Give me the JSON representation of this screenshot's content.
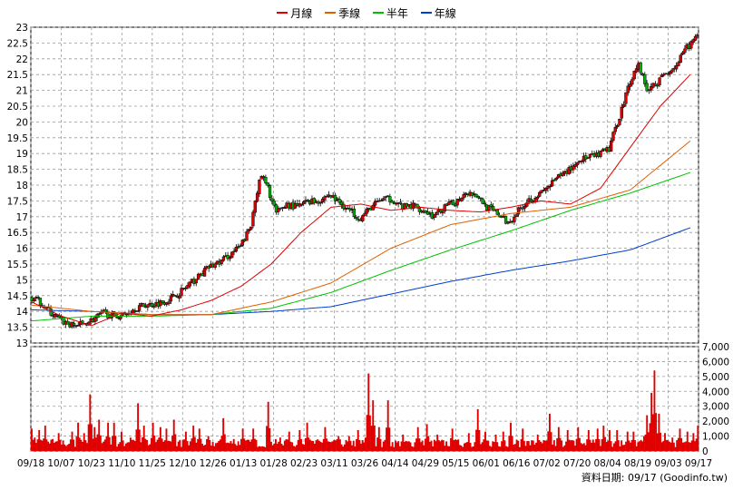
{
  "chart_data": {
    "type": "candlestick",
    "legend": [
      {
        "name": "月線",
        "color": "#e00000"
      },
      {
        "name": "季線",
        "color": "#e06000"
      },
      {
        "name": "半年",
        "color": "#00c000"
      },
      {
        "name": "年線",
        "color": "#0040d0"
      }
    ],
    "price_axis": {
      "ylim": [
        13,
        23
      ],
      "ticks": [
        "13",
        "13.5",
        "14",
        "14.5",
        "15",
        "15.5",
        "16",
        "16.5",
        "17",
        "17.5",
        "18",
        "18.5",
        "19",
        "19.5",
        "20",
        "20.5",
        "21",
        "21.5",
        "22",
        "22.5",
        "23"
      ],
      "grid": true
    },
    "volume_axis": {
      "ylim": [
        0,
        7000
      ],
      "ticks": [
        "0",
        "1,000",
        "2,000",
        "3,000",
        "4,000",
        "5,000",
        "6,000",
        "7,000"
      ],
      "grid": true
    },
    "x_ticks": [
      "09/18",
      "10/07",
      "10/23",
      "11/10",
      "11/25",
      "12/10",
      "12/26",
      "01/13",
      "01/28",
      "02/23",
      "03/11",
      "03/26",
      "04/14",
      "04/29",
      "05/15",
      "06/01",
      "06/16",
      "07/02",
      "07/20",
      "08/04",
      "08/19",
      "09/03",
      "09/17"
    ],
    "price_anchors": [
      [
        0,
        14.45
      ],
      [
        5,
        14.3
      ],
      [
        10,
        13.95
      ],
      [
        15,
        13.7
      ],
      [
        20,
        13.55
      ],
      [
        25,
        13.6
      ],
      [
        30,
        13.75
      ],
      [
        35,
        13.95
      ],
      [
        40,
        13.85
      ],
      [
        45,
        13.9
      ],
      [
        50,
        14.1
      ],
      [
        55,
        14.2
      ],
      [
        60,
        14.25
      ],
      [
        65,
        14.35
      ],
      [
        70,
        14.55
      ],
      [
        75,
        14.8
      ],
      [
        80,
        15.1
      ],
      [
        85,
        15.4
      ],
      [
        90,
        15.55
      ],
      [
        95,
        15.8
      ],
      [
        100,
        16.05
      ],
      [
        105,
        16.7
      ],
      [
        107,
        17.6
      ],
      [
        110,
        18.3
      ],
      [
        113,
        17.9
      ],
      [
        117,
        17.1
      ],
      [
        122,
        17.4
      ],
      [
        127,
        17.3
      ],
      [
        132,
        17.5
      ],
      [
        137,
        17.5
      ],
      [
        142,
        17.7
      ],
      [
        147,
        17.45
      ],
      [
        152,
        17.2
      ],
      [
        157,
        16.95
      ],
      [
        162,
        17.3
      ],
      [
        167,
        17.55
      ],
      [
        172,
        17.55
      ],
      [
        177,
        17.3
      ],
      [
        182,
        17.35
      ],
      [
        187,
        17.2
      ],
      [
        192,
        17.0
      ],
      [
        197,
        17.3
      ],
      [
        202,
        17.45
      ],
      [
        207,
        17.8
      ],
      [
        212,
        17.7
      ],
      [
        217,
        17.3
      ],
      [
        222,
        17.1
      ],
      [
        227,
        16.8
      ],
      [
        232,
        17.2
      ],
      [
        237,
        17.55
      ],
      [
        242,
        17.7
      ],
      [
        247,
        18.0
      ],
      [
        252,
        18.3
      ],
      [
        257,
        18.55
      ],
      [
        262,
        18.85
      ],
      [
        265,
        18.85
      ],
      [
        270,
        18.95
      ],
      [
        275,
        19.15
      ],
      [
        280,
        20.2
      ],
      [
        285,
        21.3
      ],
      [
        289,
        21.85
      ],
      [
        293,
        21.0
      ],
      [
        297,
        21.2
      ],
      [
        302,
        21.55
      ],
      [
        307,
        21.8
      ],
      [
        312,
        22.35
      ],
      [
        316,
        22.65
      ]
    ],
    "ma_month": [
      [
        0,
        14.3
      ],
      [
        20,
        13.85
      ],
      [
        40,
        13.55
      ],
      [
        60,
        13.95
      ],
      [
        80,
        13.85
      ],
      [
        100,
        14.05
      ],
      [
        120,
        14.35
      ],
      [
        140,
        14.8
      ],
      [
        160,
        15.5
      ],
      [
        180,
        16.5
      ],
      [
        200,
        17.3
      ],
      [
        220,
        17.4
      ],
      [
        240,
        17.2
      ],
      [
        260,
        17.3
      ],
      [
        280,
        17.2
      ],
      [
        300,
        17.15
      ],
      [
        320,
        17.3
      ],
      [
        340,
        17.5
      ],
      [
        360,
        17.4
      ],
      [
        380,
        17.9
      ],
      [
        400,
        19.2
      ],
      [
        420,
        20.5
      ],
      [
        440,
        21.5
      ]
    ],
    "ma_quarter": [
      [
        0,
        14.2
      ],
      [
        40,
        14.0
      ],
      [
        80,
        13.9
      ],
      [
        120,
        13.9
      ],
      [
        160,
        14.3
      ],
      [
        200,
        14.9
      ],
      [
        240,
        16.0
      ],
      [
        280,
        16.75
      ],
      [
        320,
        17.1
      ],
      [
        360,
        17.3
      ],
      [
        400,
        17.85
      ],
      [
        440,
        19.4
      ]
    ],
    "ma_half": [
      [
        0,
        13.7
      ],
      [
        40,
        13.85
      ],
      [
        80,
        13.85
      ],
      [
        120,
        13.9
      ],
      [
        160,
        14.1
      ],
      [
        200,
        14.6
      ],
      [
        240,
        15.3
      ],
      [
        280,
        15.95
      ],
      [
        320,
        16.55
      ],
      [
        360,
        17.2
      ],
      [
        400,
        17.75
      ],
      [
        440,
        18.4
      ]
    ],
    "ma_year": [
      [
        0,
        14.05
      ],
      [
        40,
        14.0
      ],
      [
        80,
        13.9
      ],
      [
        120,
        13.9
      ],
      [
        160,
        14.0
      ],
      [
        200,
        14.15
      ],
      [
        240,
        14.55
      ],
      [
        280,
        14.95
      ],
      [
        320,
        15.3
      ],
      [
        360,
        15.6
      ],
      [
        400,
        15.95
      ],
      [
        440,
        16.65
      ]
    ],
    "volume_spikes": [
      [
        0,
        1500
      ],
      [
        2,
        900
      ],
      [
        5,
        1400
      ],
      [
        9,
        1700
      ],
      [
        14,
        800
      ],
      [
        18,
        1200
      ],
      [
        27,
        1300
      ],
      [
        31,
        1900
      ],
      [
        35,
        1200
      ],
      [
        39,
        3800
      ],
      [
        42,
        1600
      ],
      [
        45,
        2100
      ],
      [
        51,
        1900
      ],
      [
        55,
        1900
      ],
      [
        60,
        1300
      ],
      [
        66,
        900
      ],
      [
        71,
        3200
      ],
      [
        75,
        1700
      ],
      [
        81,
        1900
      ],
      [
        86,
        1600
      ],
      [
        90,
        1500
      ],
      [
        95,
        2100
      ],
      [
        103,
        1300
      ],
      [
        108,
        1700
      ],
      [
        112,
        1500
      ],
      [
        118,
        1000
      ],
      [
        128,
        2200
      ],
      [
        135,
        800
      ],
      [
        141,
        1500
      ],
      [
        148,
        1500
      ],
      [
        158,
        3300
      ],
      [
        166,
        900
      ],
      [
        172,
        1300
      ],
      [
        179,
        1400
      ],
      [
        184,
        1900
      ],
      [
        196,
        1600
      ],
      [
        205,
        1000
      ],
      [
        212,
        1000
      ],
      [
        218,
        1400
      ],
      [
        223,
        900
      ],
      [
        225,
        5200
      ],
      [
        228,
        3400
      ],
      [
        232,
        1600
      ],
      [
        238,
        3400
      ],
      [
        248,
        1100
      ],
      [
        258,
        1600
      ],
      [
        264,
        1800
      ],
      [
        271,
        1100
      ],
      [
        281,
        1500
      ],
      [
        292,
        1200
      ],
      [
        298,
        2800
      ],
      [
        303,
        1300
      ],
      [
        310,
        1100
      ],
      [
        315,
        1300
      ],
      [
        320,
        1900
      ],
      [
        328,
        1500
      ],
      [
        338,
        1100
      ],
      [
        346,
        2500
      ],
      [
        352,
        1600
      ],
      [
        358,
        1400
      ],
      [
        365,
        1600
      ],
      [
        372,
        1400
      ],
      [
        378,
        1500
      ],
      [
        382,
        1700
      ],
      [
        386,
        1400
      ],
      [
        391,
        1400
      ],
      [
        398,
        1300
      ],
      [
        402,
        1300
      ],
      [
        409,
        1000
      ],
      [
        411,
        2400
      ],
      [
        414,
        3900
      ],
      [
        416,
        5400
      ],
      [
        419,
        2500
      ],
      [
        423,
        1200
      ],
      [
        428,
        900
      ],
      [
        433,
        1500
      ],
      [
        438,
        1300
      ],
      [
        442,
        1200
      ],
      [
        445,
        1700
      ]
    ]
  },
  "credit": "資料日期: 09/17  (Goodinfo.tw)"
}
